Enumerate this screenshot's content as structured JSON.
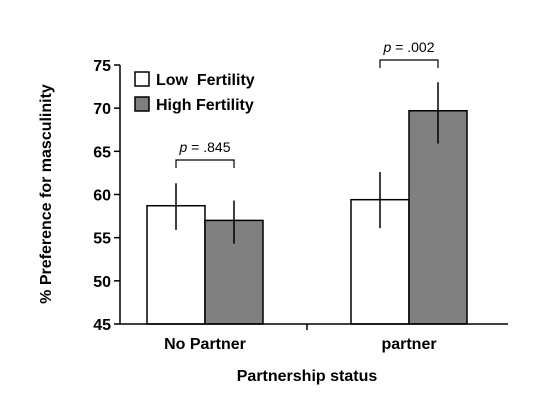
{
  "chart_data": {
    "type": "bar",
    "title": "",
    "xlabel": "Partnership status",
    "ylabel": "% Preference for masculinity",
    "ylim": [
      45,
      75
    ],
    "yticks": [
      45,
      50,
      55,
      60,
      65,
      70,
      75
    ],
    "ytick_labels": [
      "45",
      "50",
      "55",
      "60",
      "65",
      "70",
      "75"
    ],
    "grid": false,
    "legend_position": "top-left",
    "categories": [
      "No Partner",
      "partner"
    ],
    "series": [
      {
        "name": "Low  Fertility",
        "color": "#ffffff",
        "values": [
          58.7,
          59.4
        ],
        "error_low": [
          55.9,
          56.1
        ],
        "error_high": [
          61.3,
          62.6
        ]
      },
      {
        "name": "High Fertility",
        "color": "#808080",
        "values": [
          57.0,
          69.7
        ],
        "error_low": [
          54.3,
          65.9
        ],
        "error_high": [
          59.3,
          73.0
        ]
      }
    ],
    "annotations": [
      {
        "category_index": 0,
        "prefix": "p",
        "text": " = .845"
      },
      {
        "category_index": 1,
        "prefix": "p",
        "text": " = .002"
      }
    ]
  }
}
